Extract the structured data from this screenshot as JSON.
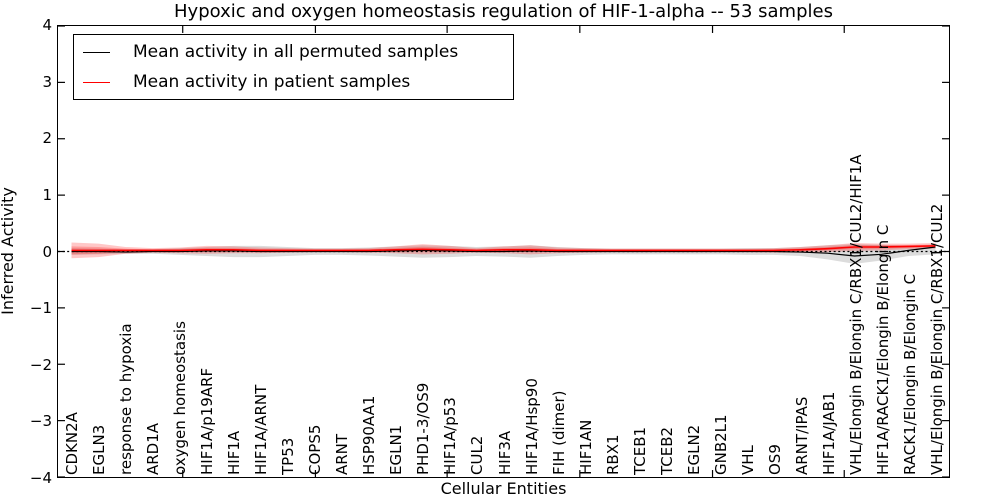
{
  "figure": {
    "title": "Hypoxic and oxygen homeostasis regulation of HIF-1-alpha -- 53 samples",
    "sample_count_note": "53 samples"
  },
  "chart_data": {
    "type": "line",
    "title": "Hypoxic and oxygen homeostasis regulation of HIF-1-alpha -- 53 samples",
    "xlabel": "Cellular Entities",
    "ylabel": "Inferred Activity",
    "ylim": [
      -4,
      4
    ],
    "grid": false,
    "legend_position": "upper-left",
    "y_ticks": [
      4,
      3,
      2,
      1,
      0,
      -1,
      -2,
      -3,
      -4
    ],
    "y_tick_labels": [
      "4",
      "3",
      "2",
      "1",
      "0",
      "−1",
      "−2",
      "−3",
      "−4"
    ],
    "zero_line": {
      "style": "dotted",
      "color": "#000000",
      "y": 0
    },
    "categories": [
      "CDKN2A",
      "EGLN3",
      "response to hypoxia",
      "ARD1A",
      "oxygen homeostasis",
      "HIF1A/p19ARF",
      "HIF1A",
      "HIF1A/ARNT",
      "TP53",
      "COPS5",
      "ARNT",
      "HSP90AA1",
      "EGLN1",
      "PHD1-3/OS9",
      "HIF1A/p53",
      "CUL2",
      "HIF3A",
      "HIF1A/Hsp90",
      "FIH (dimer)",
      "HIF1AN",
      "RBX1",
      "TCEB1",
      "TCEB2",
      "EGLN2",
      "GNB2L1",
      "VHL",
      "OS9",
      "ARNT/IPAS",
      "HIF1A/JAB1",
      "VHL/Elongin B/Elongin C/RBX1/CUL2/HIF1A",
      "HIF1A/RACK1/Elongin B/Elongin C",
      "RACK1/Elongin B/Elongin C",
      "VHL/Elongin B/Elongin C/RBX1/CUL2"
    ],
    "series": [
      {
        "name": "Mean activity in all permuted samples",
        "color": "#000000",
        "band_color": "#808080",
        "band_opacity": 0.28,
        "values": [
          0.0,
          0.0,
          -0.01,
          0.0,
          0.0,
          0.01,
          0.01,
          0.0,
          0.0,
          0.0,
          0.0,
          0.0,
          0.01,
          0.02,
          0.01,
          0.0,
          0.0,
          0.01,
          0.0,
          0.0,
          0.0,
          0.0,
          0.0,
          0.0,
          0.0,
          0.0,
          0.0,
          -0.01,
          -0.03,
          -0.08,
          -0.05,
          0.02,
          0.08
        ],
        "band_upper": [
          0.06,
          0.05,
          0.04,
          0.04,
          0.06,
          0.08,
          0.1,
          0.1,
          0.08,
          0.06,
          0.06,
          0.07,
          0.09,
          0.11,
          0.1,
          0.08,
          0.09,
          0.11,
          0.08,
          0.06,
          0.05,
          0.05,
          0.05,
          0.05,
          0.05,
          0.06,
          0.06,
          0.08,
          0.11,
          0.13,
          0.12,
          0.1,
          0.1
        ],
        "band_lower": [
          -0.06,
          -0.05,
          -0.04,
          -0.04,
          -0.06,
          -0.08,
          -0.1,
          -0.1,
          -0.08,
          -0.06,
          -0.06,
          -0.07,
          -0.09,
          -0.11,
          -0.1,
          -0.08,
          -0.09,
          -0.11,
          -0.08,
          -0.06,
          -0.05,
          -0.05,
          -0.05,
          -0.05,
          -0.05,
          -0.06,
          -0.06,
          -0.08,
          -0.14,
          -0.22,
          -0.16,
          -0.08,
          -0.05
        ]
      },
      {
        "name": "Mean activity in patient samples",
        "color": "#ff0000",
        "band_color": "#ff0000",
        "band_opacity": 0.22,
        "values": [
          0.02,
          0.02,
          0.02,
          0.02,
          0.02,
          0.03,
          0.03,
          0.02,
          0.02,
          0.02,
          0.02,
          0.02,
          0.03,
          0.04,
          0.03,
          0.02,
          0.03,
          0.03,
          0.02,
          0.02,
          0.02,
          0.02,
          0.02,
          0.02,
          0.02,
          0.02,
          0.02,
          0.03,
          0.05,
          0.08,
          0.08,
          0.09,
          0.1
        ],
        "band_upper": [
          0.16,
          0.14,
          0.08,
          0.06,
          0.07,
          0.1,
          0.09,
          0.07,
          0.06,
          0.05,
          0.05,
          0.06,
          0.09,
          0.13,
          0.1,
          0.06,
          0.09,
          0.11,
          0.07,
          0.06,
          0.05,
          0.05,
          0.05,
          0.05,
          0.05,
          0.05,
          0.06,
          0.08,
          0.11,
          0.15,
          0.14,
          0.14,
          0.15
        ],
        "band_lower": [
          -0.12,
          -0.1,
          -0.04,
          -0.02,
          -0.03,
          -0.04,
          -0.03,
          -0.03,
          -0.02,
          -0.01,
          -0.01,
          -0.02,
          -0.03,
          -0.05,
          -0.04,
          -0.02,
          -0.03,
          -0.05,
          -0.03,
          -0.02,
          -0.01,
          -0.01,
          -0.01,
          -0.01,
          -0.01,
          -0.01,
          -0.02,
          -0.02,
          -0.01,
          0.01,
          0.02,
          0.04,
          0.05
        ]
      }
    ]
  }
}
